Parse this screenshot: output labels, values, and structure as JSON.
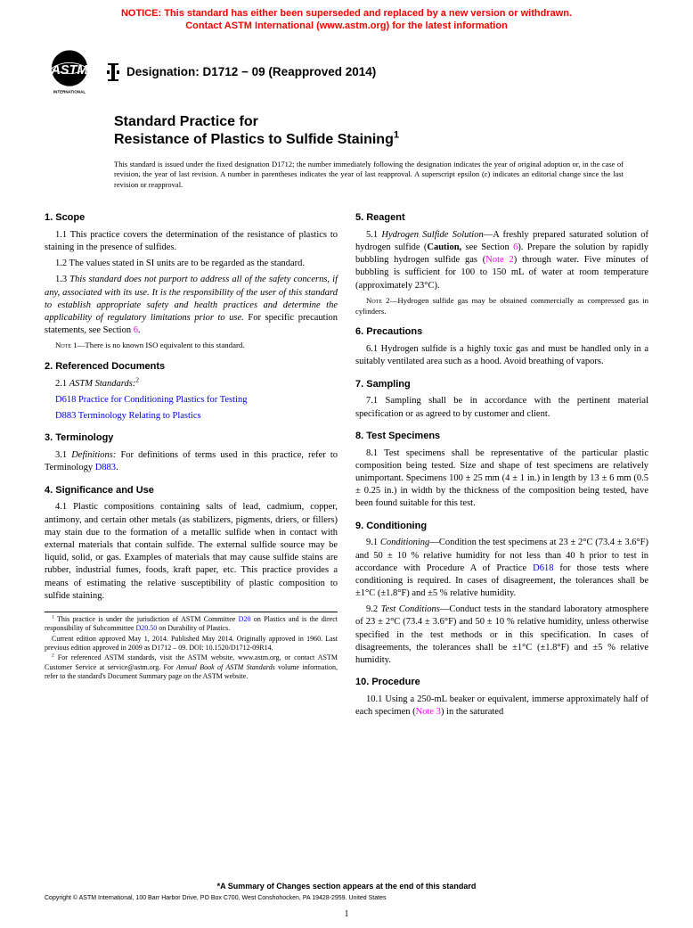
{
  "notice": {
    "line1": "NOTICE: This standard has either been superseded and replaced by a new version or withdrawn.",
    "line2": "Contact ASTM International (www.astm.org) for the latest information"
  },
  "designation": {
    "label": "Designation: D1712 − 09 (Reapproved 2014)"
  },
  "title": {
    "line1": "Standard Practice for",
    "line2_html": "Resistance of Plastics to Sulfide Staining<sup>1</sup>"
  },
  "issuanceNote": "This standard is issued under the fixed designation D1712; the number immediately following the designation indicates the year of original adoption or, in the case of revision, the year of last revision. A number in parentheses indicates the year of last reapproval. A superscript epsilon (ε) indicates an editorial change since the last revision or reapproval.",
  "leftColumn": {
    "s1_title": "1. Scope",
    "s1_1": "1.1 This practice covers the determination of the resistance of plastics to staining in the presence of sulfides.",
    "s1_2": "1.2 The values stated in SI units are to be regarded as the standard.",
    "s1_3_html": "1.3 <span class='italic'>This standard does not purport to address all of the safety concerns, if any, associated with its use. It is the responsibility of the user of this standard to establish appropriate safety and health practices and determine the applicability of regulatory limitations prior to use.</span> For specific precaution statements, see Section <span class='note-ref'>6</span>.",
    "note1_html": "<span class='small-caps'>Note</span> 1—There is no known ISO equivalent to this standard.",
    "s2_title": "2. Referenced Documents",
    "s2_1_html": "2.1 <span class='italic'>ASTM Standards:</span><sup>2</sup>",
    "s2_d618_html": "<span class='link'>D618</span> <span class='link'>Practice for Conditioning Plastics for Testing</span>",
    "s2_d883_html": "<span class='link'>D883</span> <span class='link'>Terminology Relating to Plastics</span>",
    "s3_title": "3. Terminology",
    "s3_1_html": "3.1 <span class='italic'>Definitions:</span> For definitions of terms used in this practice, refer to Terminology <span class='link'>D883</span>.",
    "s4_title": "4. Significance and Use",
    "s4_1": "4.1 Plastic compositions containing salts of lead, cadmium, copper, antimony, and certain other metals (as stabilizers, pigments, driers, or fillers) may stain due to the formation of a metallic sulfide when in contact with external materials that contain sulfide. The external sulfide source may be liquid, solid, or gas. Examples of materials that may cause sulfide stains are rubber, industrial fumes, foods, kraft paper, etc. This practice provides a means of estimating the relative susceptibility of plastic composition to sulfide staining.",
    "fn1_html": "<sup>1</sup> This practice is under the jurisdiction of ASTM Committee <span class='link'>D20</span> on Plastics and is the direct responsibility of Subcommittee <span class='link'>D20.50</span> on Durability of Plastics.",
    "fn1b": "Current edition approved May 1, 2014. Published May 2014. Originally approved in 1960. Last previous edition approved in 2009 as D1712 – 09. DOI: 10.1520/D1712-09R14.",
    "fn2_html": "<sup>2</sup> For referenced ASTM standards, visit the ASTM website, www.astm.org, or contact ASTM Customer Service at service@astm.org. For <span class='italic'>Annual Book of ASTM Standards</span> volume information, refer to the standard's Document Summary page on the ASTM website."
  },
  "rightColumn": {
    "s5_title": "5. Reagent",
    "s5_1_html": "5.1 <span class='italic'>Hydrogen Sulfide Solution</span>—A freshly prepared saturated solution of hydrogen sulfide (<span class='bold'>Caution,</span> see Section <span class='note-ref'>6</span>). Prepare the solution by rapidly bubbling hydrogen sulfide gas (<span class='note-ref'>Note 2</span>) through water. Five minutes of bubbling is sufficient for 100 to 150 mL of water at room temperature (approximately 23°C).",
    "note2_html": "<span class='small-caps'>Note</span> 2—Hydrogen sulfide gas may be obtained commercially as compressed gas in cylinders.",
    "s6_title": "6. Precautions",
    "s6_1": "6.1 Hydrogen sulfide is a highly toxic gas and must be handled only in a suitably ventilated area such as a hood. Avoid breathing of vapors.",
    "s7_title": "7. Sampling",
    "s7_1": "7.1 Sampling shall be in accordance with the pertinent material specification or as agreed to by customer and client.",
    "s8_title": "8. Test Specimens",
    "s8_1": "8.1 Test specimens shall be representative of the particular plastic composition being tested. Size and shape of test specimens are relatively unimportant. Specimens 100 ± 25 mm (4 ± 1 in.) in length by 13 ± 6 mm (0.5 ± 0.25 in.) in width by the thickness of the composition being tested, have been found suitable for this test.",
    "s9_title": "9. Conditioning",
    "s9_1_html": "9.1 <span class='italic'>Conditioning</span>—Condition the test specimens at 23 ± 2°C (73.4 ± 3.6°F) and 50 ± 10 % relative humidity for not less than 40 h prior to test in accordance with Procedure A of Practice <span class='link'>D618</span> for those tests where conditioning is required. In cases of disagreement, the tolerances shall be ±1°C (±1.8°F) and ±5 % relative humidity.",
    "s9_2_html": "9.2 <span class='italic'>Test Conditions</span>—Conduct tests in the standard laboratory atmosphere of 23 ± 2°C (73.4 ± 3.6°F) and 50 ± 10 % relative humidity, unless otherwise specified in the test methods or in this specification. In cases of disagreements, the tolerances shall be ±1°C (±1.8°F) and ±5 % relative humidity.",
    "s10_title": "10. Procedure",
    "s10_1_html": "10.1 Using a 250-mL beaker or equivalent, immerse approximately half of each specimen (<span class='note-ref'>Note 3</span>) in the saturated"
  },
  "footer": {
    "summary": "*A Summary of Changes section appears at the end of this standard",
    "copyright": "Copyright © ASTM International, 100 Barr Harbor Drive, PO Box C700, West Conshohocken, PA 19428-2959. United States",
    "pageNumber": "1"
  },
  "logo": {
    "label": "INTERNATIONAL"
  }
}
